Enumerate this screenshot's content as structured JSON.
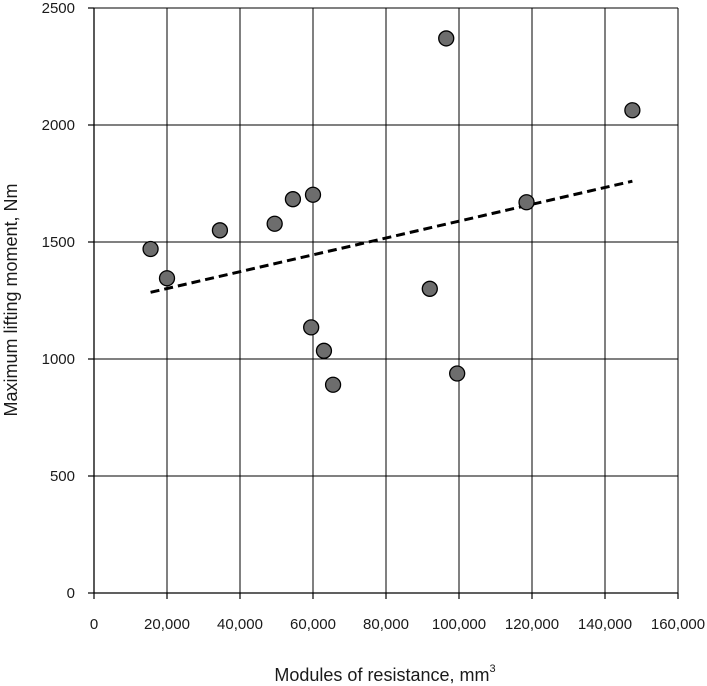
{
  "chart_data": {
    "type": "scatter",
    "title": "",
    "xlabel": "Modules of resistance, mm",
    "xlabel_superscript": "3",
    "ylabel": "Maximum lifting moment, Nm",
    "xlim": [
      0,
      160000
    ],
    "ylim": [
      0,
      2500
    ],
    "x_ticks": [
      0,
      20000,
      40000,
      60000,
      80000,
      100000,
      120000,
      140000,
      160000
    ],
    "x_tick_labels": [
      "0",
      "20,000",
      "40,000",
      "60,000",
      "80,000",
      "100,000",
      "120,000",
      "140,000",
      "160,000"
    ],
    "y_ticks": [
      0,
      500,
      1000,
      1500,
      2000,
      2500
    ],
    "y_tick_labels": [
      "0",
      "500",
      "1000",
      "1500",
      "2000",
      "2500"
    ],
    "grid": true,
    "legend": "none",
    "series": [
      {
        "marker_color": "#6d6d6d",
        "points": [
          {
            "x": 15500,
            "y": 1470
          },
          {
            "x": 20000,
            "y": 1345
          },
          {
            "x": 34500,
            "y": 1550
          },
          {
            "x": 49500,
            "y": 1578
          },
          {
            "x": 54500,
            "y": 1683
          },
          {
            "x": 59500,
            "y": 1135
          },
          {
            "x": 60000,
            "y": 1702
          },
          {
            "x": 63000,
            "y": 1035
          },
          {
            "x": 65500,
            "y": 890
          },
          {
            "x": 92000,
            "y": 1300
          },
          {
            "x": 96500,
            "y": 2370
          },
          {
            "x": 99500,
            "y": 938
          },
          {
            "x": 118500,
            "y": 1670
          },
          {
            "x": 147500,
            "y": 2063
          }
        ]
      }
    ],
    "trendline": {
      "style": "dashed",
      "color": "#000000",
      "from": {
        "x": 15500,
        "y": 1285
      },
      "to": {
        "x": 147500,
        "y": 1760
      }
    }
  }
}
